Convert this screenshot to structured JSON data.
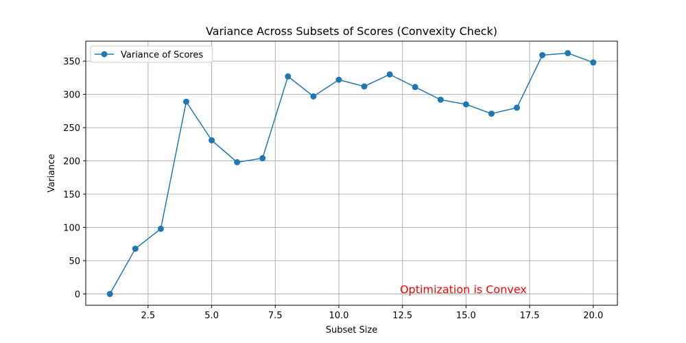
{
  "chart_data": {
    "type": "line",
    "title": "Variance Across Subsets of Scores (Convexity Check)",
    "xlabel": "Subset Size",
    "ylabel": "Variance",
    "xlim": [
      0.05,
      20.95
    ],
    "ylim": [
      -17,
      380
    ],
    "x_ticks": [
      2.5,
      5.0,
      7.5,
      10.0,
      12.5,
      15.0,
      17.5,
      20.0
    ],
    "x_tick_labels": [
      "2.5",
      "5.0",
      "7.5",
      "10.0",
      "12.5",
      "15.0",
      "17.5",
      "20.0"
    ],
    "y_ticks": [
      0,
      50,
      100,
      150,
      200,
      250,
      300,
      350
    ],
    "y_tick_labels": [
      "0",
      "50",
      "100",
      "150",
      "200",
      "250",
      "300",
      "350"
    ],
    "grid": true,
    "legend_position": "top-left",
    "series": [
      {
        "name": "Variance of Scores",
        "color": "#1f77b4",
        "marker": "circle",
        "x": [
          1,
          2,
          3,
          4,
          5,
          6,
          7,
          8,
          9,
          10,
          11,
          12,
          13,
          14,
          15,
          16,
          17,
          18,
          19,
          20
        ],
        "values": [
          0,
          68,
          98,
          289,
          231,
          198,
          204,
          327,
          297,
          322,
          312,
          330,
          311,
          292,
          285,
          271,
          280,
          359,
          362,
          348
        ]
      }
    ],
    "annotation": {
      "text": "Optimization is Convex",
      "color": "#ff0000",
      "x": 12.4,
      "y": 1
    }
  }
}
